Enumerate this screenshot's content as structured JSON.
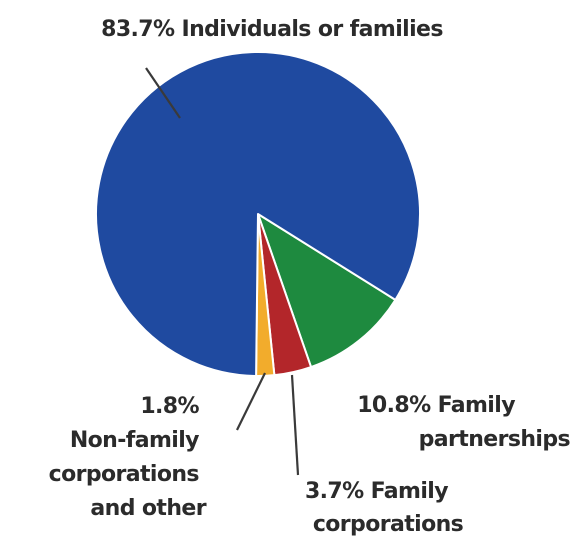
{
  "chart_data": {
    "type": "pie",
    "title": "",
    "slices": [
      {
        "name": "Individuals or families",
        "value": 83.7,
        "color": "#1f4aa0",
        "label_lines": [
          "83.7% Individuals or families"
        ]
      },
      {
        "name": "Family partnerships",
        "value": 10.8,
        "color": "#1e8a3f",
        "label_lines": [
          "10.8% Family",
          "partnerships"
        ]
      },
      {
        "name": "Family corporations",
        "value": 3.7,
        "color": "#b3262a",
        "label_lines": [
          "3.7% Family",
          "corporations"
        ]
      },
      {
        "name": "Non-family corporations and other",
        "value": 1.8,
        "color": "#f2ac2c",
        "label_lines": [
          "1.8%",
          "Non-family",
          "corporations",
          "and other"
        ]
      }
    ]
  }
}
